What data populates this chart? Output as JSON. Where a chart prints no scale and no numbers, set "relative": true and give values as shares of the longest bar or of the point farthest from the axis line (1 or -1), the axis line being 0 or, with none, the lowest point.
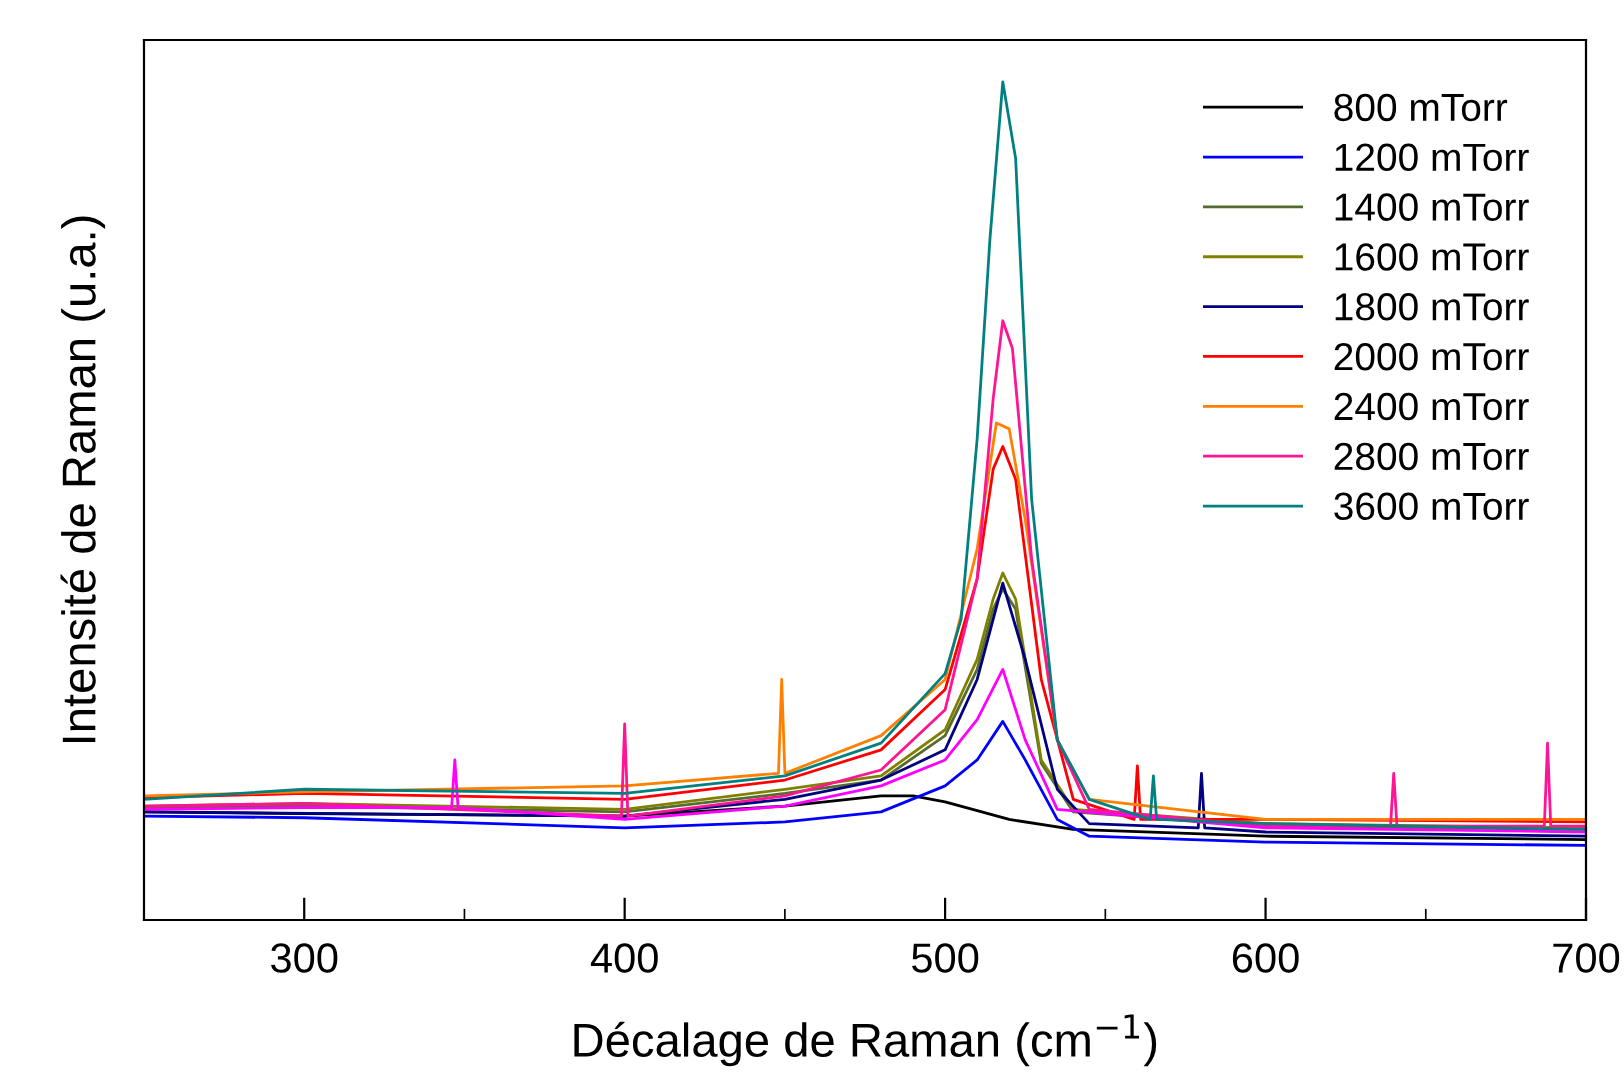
{
  "chart_data": {
    "type": "line",
    "relative": true,
    "xlabel": "Décalage de Raman (cm$^{−1}$)",
    "ylabel": "Intensité de Raman (u.a.)",
    "xlim": [
      250,
      700
    ],
    "xticks": [
      300,
      400,
      500,
      600,
      700
    ],
    "grid": false,
    "legend": "top right",
    "marker": "none",
    "line_style": "solid",
    "series": [
      {
        "name": "800 mTorr",
        "color": "#000000",
        "x": [
          250,
          300,
          400,
          450,
          480,
          490,
          500,
          520,
          540,
          600,
          700
        ],
        "values": [
          0.129,
          0.127,
          0.124,
          0.136,
          0.148,
          0.148,
          0.141,
          0.12,
          0.108,
          0.1,
          0.096
        ]
      },
      {
        "name": "1200 mTorr",
        "color": "#0000ff",
        "x": [
          250,
          300,
          400,
          450,
          480,
          500,
          510,
          518,
          525,
          535,
          545,
          600,
          700
        ],
        "values": [
          0.124,
          0.122,
          0.11,
          0.117,
          0.129,
          0.16,
          0.191,
          0.237,
          0.191,
          0.12,
          0.1,
          0.093,
          0.089
        ]
      },
      {
        "name": "1400 mTorr",
        "color": "#556b2f",
        "x": [
          250,
          300,
          400,
          450,
          480,
          500,
          510,
          515,
          518,
          522,
          530,
          540,
          600,
          700
        ],
        "values": [
          0.134,
          0.136,
          0.129,
          0.151,
          0.167,
          0.22,
          0.299,
          0.371,
          0.395,
          0.371,
          0.187,
          0.129,
          0.112,
          0.108
        ]
      },
      {
        "name": "1600 mTorr",
        "color": "#808000",
        "x": [
          250,
          300,
          400,
          450,
          480,
          500,
          510,
          515,
          518,
          522,
          530,
          540,
          600,
          700
        ],
        "values": [
          0.136,
          0.139,
          0.132,
          0.156,
          0.172,
          0.227,
          0.311,
          0.383,
          0.414,
          0.383,
          0.191,
          0.132,
          0.115,
          0.11
        ]
      },
      {
        "name": "1800 mTorr",
        "color": "#000080",
        "x": [
          250,
          400,
          450,
          480,
          500,
          510,
          518,
          525,
          535,
          545,
          579,
          580,
          581,
          600,
          700
        ],
        "values": [
          0.129,
          0.124,
          0.144,
          0.167,
          0.203,
          0.287,
          0.402,
          0.311,
          0.156,
          0.115,
          0.11,
          0.175,
          0.11,
          0.105,
          0.1
        ]
      },
      {
        "name": "2000 mTorr",
        "color": "#ff0000",
        "x": [
          250,
          300,
          400,
          450,
          480,
          500,
          510,
          515,
          518,
          522,
          530,
          540,
          559,
          560,
          561,
          600,
          700
        ],
        "values": [
          0.146,
          0.151,
          0.144,
          0.167,
          0.203,
          0.275,
          0.407,
          0.538,
          0.565,
          0.526,
          0.287,
          0.144,
          0.12,
          0.184,
          0.12,
          0.12,
          0.117
        ]
      },
      {
        "name": "2400 mTorr",
        "color": "#ff8000",
        "x": [
          250,
          300,
          400,
          448,
          449,
          450,
          480,
          500,
          510,
          516,
          520,
          525,
          535,
          545,
          600,
          700
        ],
        "values": [
          0.148,
          0.153,
          0.16,
          0.175,
          0.287,
          0.175,
          0.22,
          0.287,
          0.443,
          0.593,
          0.586,
          0.478,
          0.215,
          0.144,
          0.12,
          0.12
        ]
      },
      {
        "name": "2800 mTorr",
        "color": "#ff1493",
        "x": [
          250,
          300,
          399,
          400,
          401,
          450,
          480,
          500,
          510,
          515,
          518,
          521,
          527,
          535,
          545,
          600,
          639,
          640,
          641,
          687,
          688,
          689,
          700
        ],
        "values": [
          0.136,
          0.139,
          0.124,
          0.234,
          0.124,
          0.148,
          0.179,
          0.251,
          0.407,
          0.622,
          0.715,
          0.682,
          0.431,
          0.215,
          0.132,
          0.112,
          0.112,
          0.175,
          0.112,
          0.112,
          0.211,
          0.112,
          0.112
        ]
      },
      {
        "color": "#ff00ff",
        "x": [
          250,
          300,
          346,
          347,
          348,
          400,
          450,
          480,
          500,
          510,
          518,
          525,
          535,
          600,
          700
        ],
        "values": [
          0.132,
          0.134,
          0.134,
          0.191,
          0.134,
          0.12,
          0.136,
          0.16,
          0.191,
          0.239,
          0.299,
          0.215,
          0.132,
          0.11,
          0.105
        ]
      },
      {
        "name": "3600 mTorr",
        "color": "#008080",
        "x": [
          250,
          300,
          400,
          450,
          480,
          500,
          505,
          510,
          514,
          518,
          522,
          527,
          535,
          545,
          564,
          565,
          566,
          600,
          700
        ],
        "values": [
          0.144,
          0.156,
          0.151,
          0.172,
          0.211,
          0.294,
          0.359,
          0.574,
          0.813,
          1.0,
          0.909,
          0.502,
          0.215,
          0.144,
          0.12,
          0.172,
          0.12,
          0.115,
          0.108
        ]
      }
    ]
  }
}
